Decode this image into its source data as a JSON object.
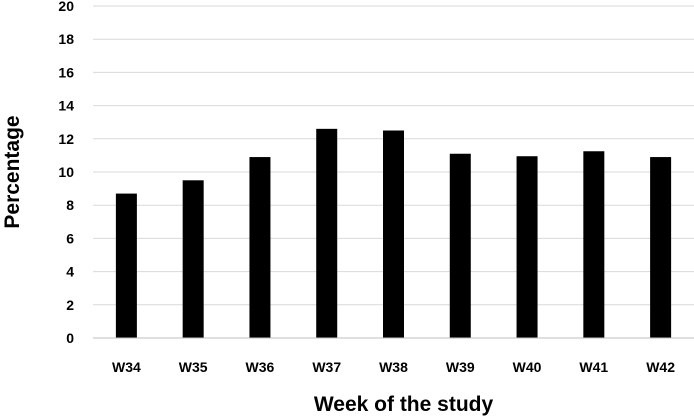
{
  "chart_data": {
    "type": "bar",
    "categories": [
      "W34",
      "W35",
      "W36",
      "W37",
      "W38",
      "W39",
      "W40",
      "W41",
      "W42"
    ],
    "values": [
      8.7,
      9.5,
      10.9,
      12.6,
      12.5,
      11.1,
      10.95,
      11.25,
      10.9
    ],
    "title": "",
    "xlabel": "Week of the study",
    "ylabel": "Percentage",
    "ylim": [
      0,
      20
    ],
    "yticks": [
      "0",
      "2",
      "4",
      "6",
      "8",
      "10",
      "12",
      "14",
      "16",
      "18",
      "20"
    ],
    "grid": true,
    "legend": "none",
    "colors": {
      "bar": "#000000",
      "grid": "#d9d9d9",
      "axis": "#bfbfbf"
    }
  }
}
